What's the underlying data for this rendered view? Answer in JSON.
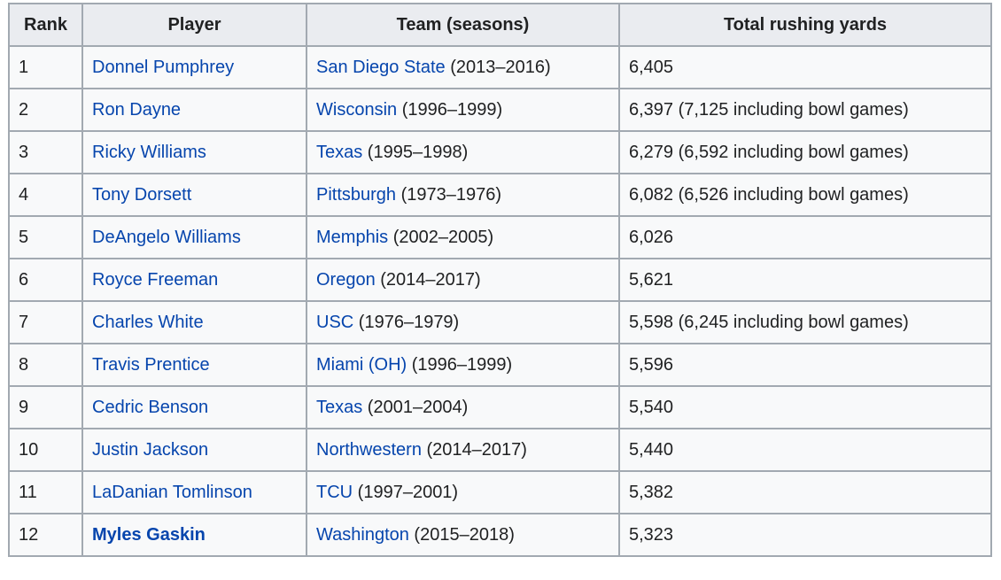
{
  "colors": {
    "link_color": "#0645ad",
    "header_bg": "#eaecf0",
    "cell_bg": "#f8f9fa",
    "border_color": "#a2a9b1",
    "text_color": "#202122"
  },
  "table": {
    "headers": [
      "Rank",
      "Player",
      "Team (seasons)",
      "Total rushing yards"
    ],
    "rows": [
      {
        "rank": "1",
        "player": "Donnel Pumphrey",
        "player_bold": false,
        "team": "San Diego State",
        "seasons": "(2013–2016)",
        "yards": "6,405"
      },
      {
        "rank": "2",
        "player": "Ron Dayne",
        "player_bold": false,
        "team": "Wisconsin",
        "seasons": "(1996–1999)",
        "yards": "6,397 (7,125 including bowl games)"
      },
      {
        "rank": "3",
        "player": "Ricky Williams",
        "player_bold": false,
        "team": "Texas",
        "seasons": "(1995–1998)",
        "yards": "6,279 (6,592 including bowl games)"
      },
      {
        "rank": "4",
        "player": "Tony Dorsett",
        "player_bold": false,
        "team": "Pittsburgh",
        "seasons": "(1973–1976)",
        "yards": "6,082 (6,526 including bowl games)"
      },
      {
        "rank": "5",
        "player": "DeAngelo Williams",
        "player_bold": false,
        "team": "Memphis",
        "seasons": "(2002–2005)",
        "yards": "6,026"
      },
      {
        "rank": "6",
        "player": "Royce Freeman",
        "player_bold": false,
        "team": "Oregon",
        "seasons": "(2014–2017)",
        "yards": "5,621"
      },
      {
        "rank": "7",
        "player": "Charles White",
        "player_bold": false,
        "team": "USC",
        "seasons": "(1976–1979)",
        "yards": "5,598 (6,245 including bowl games)"
      },
      {
        "rank": "8",
        "player": "Travis Prentice",
        "player_bold": false,
        "team": "Miami (OH)",
        "seasons": "(1996–1999)",
        "yards": "5,596"
      },
      {
        "rank": "9",
        "player": "Cedric Benson",
        "player_bold": false,
        "team": "Texas",
        "seasons": "(2001–2004)",
        "yards": "5,540"
      },
      {
        "rank": "10",
        "player": "Justin Jackson",
        "player_bold": false,
        "team": "Northwestern",
        "seasons": "(2014–2017)",
        "yards": "5,440"
      },
      {
        "rank": "11",
        "player": "LaDanian Tomlinson",
        "player_bold": false,
        "team": "TCU",
        "seasons": "(1997–2001)",
        "yards": "5,382"
      },
      {
        "rank": "12",
        "player": "Myles Gaskin",
        "player_bold": true,
        "team": "Washington",
        "seasons": "(2015–2018)",
        "yards": "5,323"
      }
    ]
  }
}
